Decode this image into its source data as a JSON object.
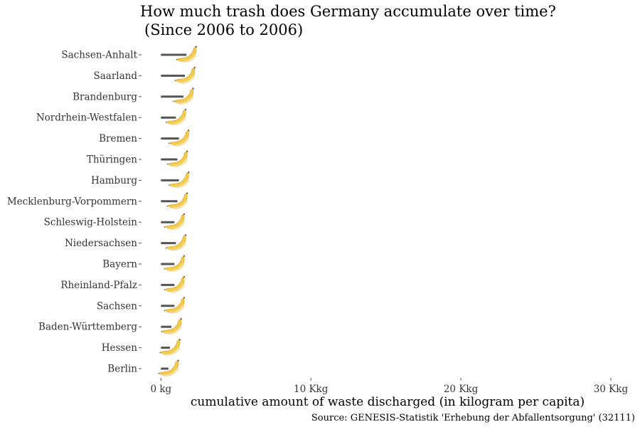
{
  "chart_data": {
    "type": "bar",
    "orientation": "horizontal",
    "title": "How much trash does Germany accumulate over time?",
    "subtitle": "(Since 2006 to 2006)",
    "xlabel": "cumulative amount of waste discharged (in kilogram per capita)",
    "ylabel": "",
    "caption": "Source: GENESIS-Statistik 'Erhebung der Abfallentsorgung' (32111)",
    "xlim": [
      -0.3,
      31
    ],
    "x_ticks": [
      {
        "value": 0,
        "label": "0 kg"
      },
      {
        "value": 10,
        "label": "10 Kkg"
      },
      {
        "value": 20,
        "label": "20 Kkg"
      },
      {
        "value": 30,
        "label": "30 Kkg"
      }
    ],
    "grid": false,
    "legend": "none",
    "marker": "banana",
    "categories": [
      "Sachsen-Anhalt",
      "Saarland",
      "Brandenburg",
      "Nordrhein-Westfalen",
      "Bremen",
      "Thüringen",
      "Hamburg",
      "Mecklenburg-Vorpommern",
      "Schleswig-Holstein",
      "Niedersachsen",
      "Bayern",
      "Rheinland-Pfalz",
      "Sachsen",
      "Baden-Württemberg",
      "Hessen",
      "Berlin"
    ],
    "values": [
      1.7,
      1.6,
      1.5,
      1.0,
      1.2,
      1.1,
      1.2,
      1.1,
      0.9,
      1.0,
      0.9,
      0.9,
      0.9,
      0.7,
      0.6,
      0.5
    ]
  }
}
